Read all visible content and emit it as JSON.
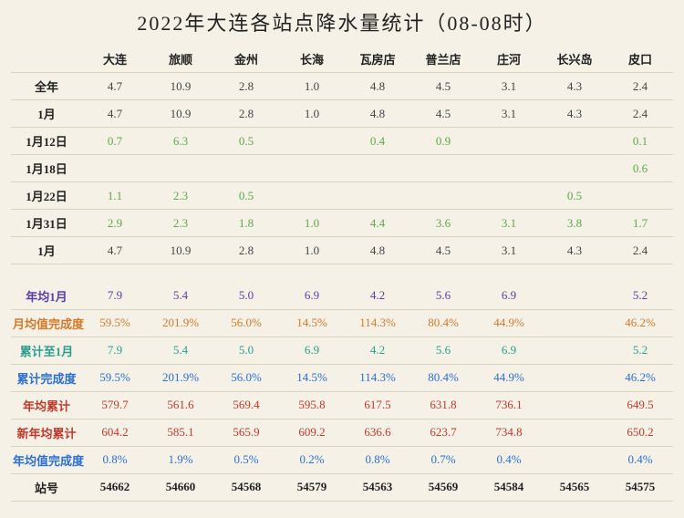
{
  "title": "2022年大连各站点降水量统计（08-08时）",
  "stations": [
    "大连",
    "旅顺",
    "金州",
    "长海",
    "瓦房店",
    "普兰店",
    "庄河",
    "长兴岛",
    "皮口"
  ],
  "colors": {
    "default": "#444",
    "green": "#5fa84a",
    "purple": "#5a3da8",
    "orange": "#d17a2a",
    "teal": "#2a9d8f",
    "blue": "#2a6fd1",
    "red": "#c0392b",
    "bold": "#222"
  },
  "rows": [
    {
      "label": "全年",
      "labelColor": "bold",
      "valueColor": "default",
      "bold": false,
      "values": [
        "4.7",
        "10.9",
        "2.8",
        "1.0",
        "4.8",
        "4.5",
        "3.1",
        "4.3",
        "2.4"
      ]
    },
    {
      "label": "1月",
      "labelColor": "bold",
      "valueColor": "default",
      "bold": false,
      "values": [
        "4.7",
        "10.9",
        "2.8",
        "1.0",
        "4.8",
        "4.5",
        "3.1",
        "4.3",
        "2.4"
      ]
    },
    {
      "label": "1月12日",
      "labelColor": "bold",
      "valueColor": "green",
      "bold": false,
      "values": [
        "0.7",
        "6.3",
        "0.5",
        "",
        "0.4",
        "0.9",
        "",
        "",
        "0.1"
      ]
    },
    {
      "label": "1月18日",
      "labelColor": "bold",
      "valueColor": "green",
      "bold": false,
      "values": [
        "",
        "",
        "",
        "",
        "",
        "",
        "",
        "",
        "0.6"
      ]
    },
    {
      "label": "1月22日",
      "labelColor": "bold",
      "valueColor": "green",
      "bold": false,
      "values": [
        "1.1",
        "2.3",
        "0.5",
        "",
        "",
        "",
        "",
        "0.5",
        ""
      ]
    },
    {
      "label": "1月31日",
      "labelColor": "bold",
      "valueColor": "green",
      "bold": false,
      "values": [
        "2.9",
        "2.3",
        "1.8",
        "1.0",
        "4.4",
        "3.6",
        "3.1",
        "3.8",
        "1.7"
      ]
    },
    {
      "label": "1月",
      "labelColor": "bold",
      "valueColor": "default",
      "bold": false,
      "values": [
        "4.7",
        "10.9",
        "2.8",
        "1.0",
        "4.8",
        "4.5",
        "3.1",
        "4.3",
        "2.4"
      ]
    },
    {
      "spacer": true
    },
    {
      "label": "年均1月",
      "labelColor": "purple",
      "valueColor": "purple",
      "bold": false,
      "values": [
        "7.9",
        "5.4",
        "5.0",
        "6.9",
        "4.2",
        "5.6",
        "6.9",
        "",
        "5.2"
      ]
    },
    {
      "label": "月均值完成度",
      "labelColor": "orange",
      "valueColor": "orange",
      "bold": false,
      "values": [
        "59.5%",
        "201.9%",
        "56.0%",
        "14.5%",
        "114.3%",
        "80.4%",
        "44.9%",
        "",
        "46.2%"
      ]
    },
    {
      "label": "累计至1月",
      "labelColor": "teal",
      "valueColor": "teal",
      "bold": false,
      "values": [
        "7.9",
        "5.4",
        "5.0",
        "6.9",
        "4.2",
        "5.6",
        "6.9",
        "",
        "5.2"
      ]
    },
    {
      "label": "累计完成度",
      "labelColor": "blue",
      "valueColor": "blue",
      "bold": false,
      "values": [
        "59.5%",
        "201.9%",
        "56.0%",
        "14.5%",
        "114.3%",
        "80.4%",
        "44.9%",
        "",
        "46.2%"
      ]
    },
    {
      "label": "年均累计",
      "labelColor": "red",
      "valueColor": "red",
      "bold": false,
      "values": [
        "579.7",
        "561.6",
        "569.4",
        "595.8",
        "617.5",
        "631.8",
        "736.1",
        "",
        "649.5"
      ]
    },
    {
      "label": "新年均累计",
      "labelColor": "red",
      "valueColor": "red",
      "bold": false,
      "values": [
        "604.2",
        "585.1",
        "565.9",
        "609.2",
        "636.6",
        "623.7",
        "734.8",
        "",
        "650.2"
      ]
    },
    {
      "label": "年均值完成度",
      "labelColor": "blue",
      "valueColor": "blue",
      "bold": false,
      "values": [
        "0.8%",
        "1.9%",
        "0.5%",
        "0.2%",
        "0.8%",
        "0.7%",
        "0.4%",
        "",
        "0.4%"
      ]
    },
    {
      "label": "站号",
      "labelColor": "bold",
      "valueColor": "bold",
      "bold": true,
      "values": [
        "54662",
        "54660",
        "54568",
        "54579",
        "54563",
        "54569",
        "54584",
        "54565",
        "54575"
      ]
    }
  ]
}
